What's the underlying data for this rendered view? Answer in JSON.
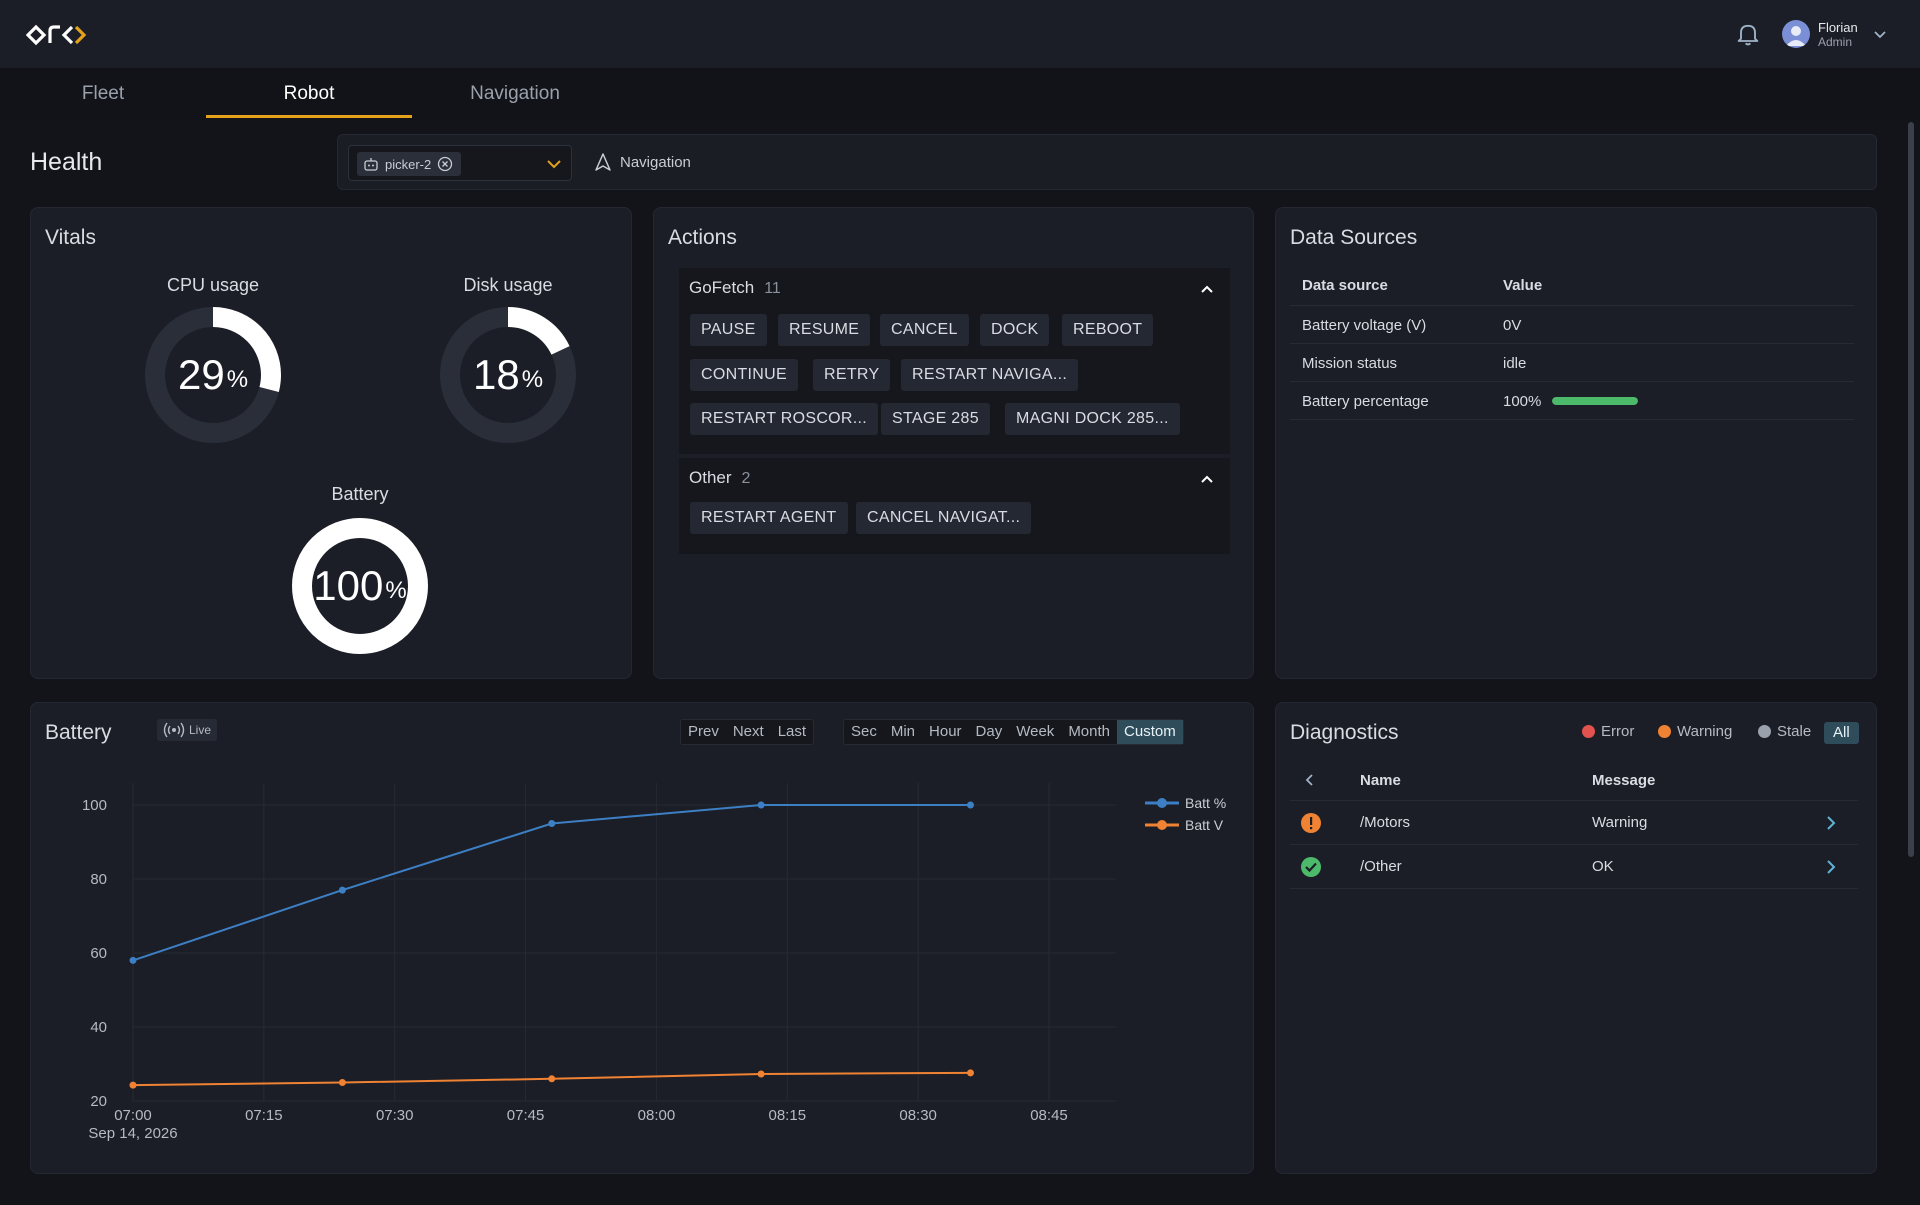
{
  "header": {
    "user_name": "Florian",
    "user_role": "Admin"
  },
  "tabs": [
    {
      "label": "Fleet"
    },
    {
      "label": "Robot"
    },
    {
      "label": "Navigation"
    }
  ],
  "health": {
    "title": "Health",
    "robot_chip": "picker-2",
    "nav_filter_label": "Navigation"
  },
  "vitals": {
    "title": "Vitals",
    "cpu": {
      "label": "CPU usage",
      "value": "29",
      "unit": "%",
      "fraction": 0.29
    },
    "disk": {
      "label": "Disk usage",
      "value": "18",
      "unit": "%",
      "fraction": 0.18
    },
    "battery": {
      "label": "Battery",
      "value": "100",
      "unit": "%",
      "fraction": 1.0
    }
  },
  "actions": {
    "title": "Actions",
    "groups": [
      {
        "name": "GoFetch",
        "count": "11",
        "buttons": [
          "PAUSE",
          "RESUME",
          "CANCEL",
          "DOCK",
          "REBOOT",
          "CONTINUE",
          "RETRY",
          "RESTART NAVIGA...",
          "RESTART ROSCOR...",
          "STAGE 285",
          "MAGNI DOCK 285..."
        ]
      },
      {
        "name": "Other",
        "count": "2",
        "buttons": [
          "RESTART AGENT",
          "CANCEL NAVIGAT..."
        ]
      }
    ]
  },
  "data_sources": {
    "title": "Data Sources",
    "headers": [
      "Data source",
      "Value"
    ],
    "rows": [
      {
        "source": "Battery voltage (V)",
        "value": "0V"
      },
      {
        "source": "Mission status",
        "value": "idle"
      },
      {
        "source": "Battery percentage",
        "value": "100%",
        "bar_fraction": 1.0
      }
    ],
    "bar_color": "#4cba6a"
  },
  "battery_chart_panel": {
    "title": "Battery",
    "live_label": "Live",
    "nav_buttons": [
      "Prev",
      "Next",
      "Last"
    ],
    "range_buttons": [
      "Sec",
      "Min",
      "Hour",
      "Day",
      "Week",
      "Month",
      "Custom"
    ],
    "active_range": "Custom"
  },
  "chart_data": {
    "type": "line",
    "x": [
      "07:00",
      "07:24",
      "07:48",
      "08:12",
      "08:36"
    ],
    "x_ticks": [
      "07:00",
      "07:15",
      "07:30",
      "07:45",
      "08:00",
      "08:15",
      "08:30",
      "08:45"
    ],
    "x_date_label": "Sep 14, 2026",
    "y_ticks": [
      20,
      40,
      60,
      80,
      100
    ],
    "ylim": [
      20,
      100
    ],
    "series": [
      {
        "name": "Batt %",
        "color": "#3d7fc4",
        "values": [
          58,
          77,
          95,
          100,
          100
        ]
      },
      {
        "name": "Batt V",
        "color": "#ef8233",
        "values": [
          24.3,
          25,
          26,
          27.3,
          27.6
        ]
      }
    ],
    "grid": true,
    "legend": "top-right"
  },
  "diagnostics": {
    "title": "Diagnostics",
    "filters": [
      {
        "label": "Error",
        "color": "#e2524f"
      },
      {
        "label": "Warning",
        "color": "#ef8233"
      },
      {
        "label": "Stale",
        "color": "#9aa1ad"
      }
    ],
    "all_label": "All",
    "headers": [
      "Name",
      "Message"
    ],
    "rows": [
      {
        "name": "/Motors",
        "message": "Warning",
        "status": "warning"
      },
      {
        "name": "/Other",
        "message": "OK",
        "status": "ok"
      }
    ]
  }
}
